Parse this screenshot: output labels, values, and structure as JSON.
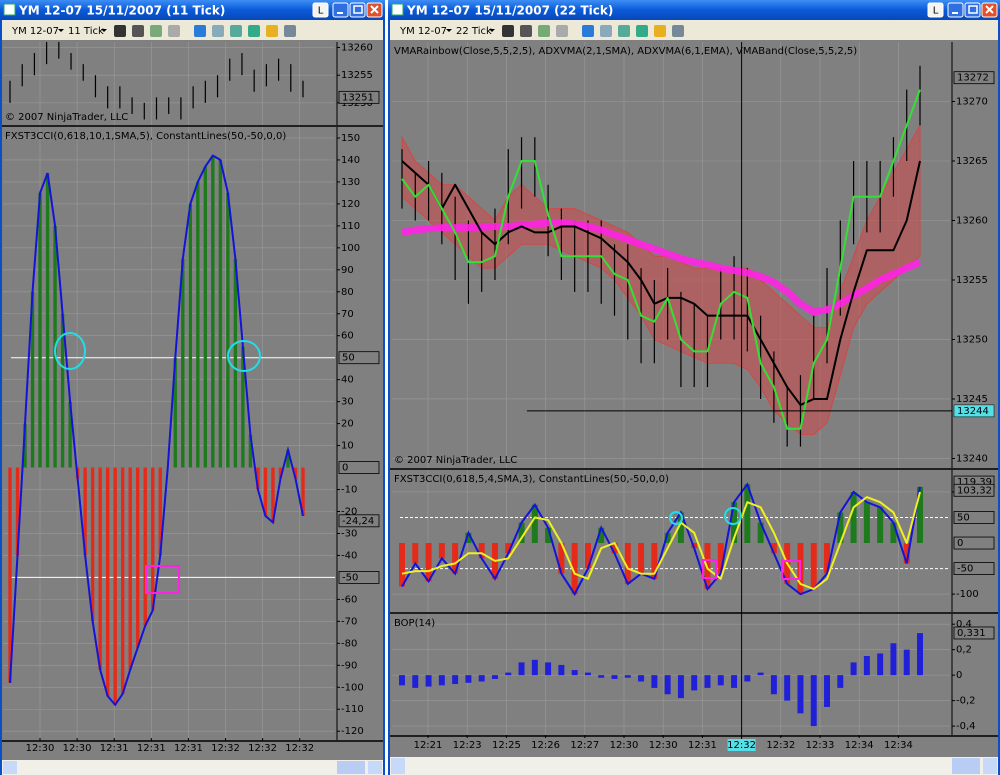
{
  "windows": [
    {
      "title": "YM 12-07  15/11/2007  (11 Tick)",
      "link_button": "L",
      "instrument": "YM 12-07",
      "interval": "11 Tick",
      "xaxis": {
        "labels": [
          "12:30",
          "12:30",
          "12:31",
          "12:31",
          "12:31",
          "12:32",
          "12:32",
          "12:32"
        ]
      },
      "panels": [
        {
          "copyright": "© 2007 NinjaTrader, LLC",
          "ylim": [
            13246,
            13261
          ],
          "yticks": [
            13250,
            13255,
            13260
          ],
          "markers": [
            13251
          ],
          "series": [
            {
              "type": "ohlc",
              "color": "#000000",
              "high": [
                13254,
                13257,
                13259,
                13261,
                13261,
                13259,
                13257,
                13255,
                13253,
                13253,
                13251,
                13250,
                13251,
                13251,
                13251,
                13253,
                13254,
                13255,
                13258,
                13259,
                13256,
                13257,
                13258,
                13257,
                13254
              ],
              "low": [
                13250,
                13253,
                13255,
                13257,
                13258,
                13256,
                13254,
                13251,
                13249,
                13249,
                13248,
                13247,
                13247,
                13248,
                13247,
                13249,
                13250,
                13251,
                13254,
                13255,
                13252,
                13253,
                13254,
                13252,
                13251
              ]
            }
          ]
        },
        {
          "label": "FXST3CCI(0,618,10,1,SMA,5), ConstantLines(50,-50,0,0)",
          "ylim": [
            -124,
            155
          ],
          "yticks": [
            -120,
            -110,
            -100,
            -90,
            -80,
            -70,
            -60,
            -40,
            -30,
            -20,
            -10,
            10,
            20,
            30,
            40,
            60,
            70,
            80,
            90,
            100,
            110,
            120,
            130,
            140,
            150
          ],
          "levels": [
            50,
            -50
          ],
          "level_style": "solid",
          "markers": [
            50,
            0,
            {
              "value": -24.24,
              "label": "-24,24"
            },
            -50
          ],
          "series": [
            {
              "type": "histogram",
              "up_color": "#1d7a1d",
              "down_color": "#e52a1a",
              "line_color": "#1414d8",
              "values": [
                -98,
                -40,
                20,
                80,
                125,
                134,
                110,
                70,
                30,
                -5,
                -40,
                -70,
                -92,
                -104,
                -108,
                -103,
                -92,
                -82,
                -72,
                -65,
                -40,
                0,
                50,
                95,
                120,
                130,
                137,
                142,
                140,
                125,
                95,
                55,
                15,
                -10,
                -22,
                -25,
                -5,
                8,
                -5,
                -22
              ]
            }
          ]
        }
      ]
    },
    {
      "title": "YM 12-07  15/11/2007  (22 Tick)",
      "link_button": "L",
      "instrument": "YM 12-07",
      "interval": "22 Tick",
      "xaxis": {
        "labels": [
          "12:21",
          "12:23",
          "12:25",
          "12:26",
          "12:27",
          "12:30",
          "12:30",
          "12:31",
          "12:32",
          "12:32",
          "12:33",
          "12:34",
          "12:34"
        ],
        "crosshair_index": 8
      },
      "panels": [
        {
          "label": "VMARainbow(Close,5,5,2,5), ADXVMA(2,1,SMA), ADXVMA(6,1,EMA), VMABand(Close,5,5,2,5)",
          "copyright": "© 2007 NinjaTrader, LLC",
          "ylim": [
            13239.2,
            13275
          ],
          "yticks": [
            13240,
            13245,
            13250,
            13255,
            13260,
            13265,
            13270
          ],
          "markers": [
            13272
          ],
          "crosshair": {
            "value": 13244,
            "label": "13244"
          },
          "series": [
            {
              "type": "band",
              "color": "#d04848",
              "upper": [
                13267,
                13265,
                13264,
                13263,
                13263,
                13262,
                13261,
                13260,
                13262,
                13263,
                13262,
                13261,
                13261,
                13261,
                13260.5,
                13260,
                13259.5,
                13259,
                13258,
                13257,
                13257,
                13256.5,
                13256,
                13256,
                13256,
                13256,
                13256,
                13255,
                13254,
                13253,
                13252,
                13251,
                13251,
                13254,
                13257,
                13260,
                13262,
                13264,
                13266,
                13268
              ],
              "lower": [
                13262,
                13261,
                13260,
                13259,
                13258,
                13257,
                13256,
                13256,
                13257,
                13258,
                13258,
                13258,
                13257.5,
                13257,
                13256.5,
                13256,
                13255,
                13253.5,
                13252,
                13250,
                13249.5,
                13249,
                13248.5,
                13248,
                13248,
                13248,
                13247.5,
                13246,
                13244,
                13243,
                13242,
                13242,
                13243,
                13247,
                13251,
                13253,
                13254,
                13255,
                13256,
                13257
              ]
            },
            {
              "type": "ohlc",
              "color": "#000000",
              "high": [
                13266,
                13264,
                13265,
                13264,
                13262,
                13260,
                13259,
                13261,
                13266,
                13267,
                13267,
                13263,
                13261,
                13260,
                13260,
                13260,
                13258,
                13258,
                13256,
                13255,
                13256,
                13254,
                13253,
                13252,
                13256,
                13257,
                13256,
                13252,
                13249,
                13246,
                13247,
                13252,
                13256,
                13260,
                13265,
                13265,
                13265,
                13267,
                13271,
                13273
              ],
              "low": [
                13261,
                13260,
                13260,
                13258,
                13255,
                13253,
                13254,
                13255,
                13258,
                13261,
                13262,
                13257,
                13255,
                13254,
                13254,
                13253,
                13252,
                13250,
                13248,
                13248,
                13250,
                13246,
                13246,
                13246,
                13250,
                13250,
                13249,
                13245,
                13243,
                13241,
                13241,
                13245,
                13248,
                13252,
                13258,
                13259,
                13259,
                13262,
                13265,
                13268
              ]
            },
            {
              "type": "line",
              "color": "#ff22e6",
              "width": 7,
              "values": [
                13259,
                13259.2,
                13259.3,
                13259.4,
                13259.4,
                13259.4,
                13259.4,
                13259.5,
                13259.5,
                13259.6,
                13259.7,
                13259.8,
                13259.8,
                13259.7,
                13259.5,
                13259.2,
                13258.8,
                13258.4,
                13258,
                13257.6,
                13257.2,
                13256.8,
                13256.5,
                13256.3,
                13256,
                13255.8,
                13255.6,
                13255.3,
                13254.8,
                13254,
                13253,
                13252.3,
                13252.5,
                13253,
                13253.7,
                13254.3,
                13255,
                13255.5,
                13256,
                13256.5
              ]
            },
            {
              "type": "line",
              "color": "#000000",
              "width": 2,
              "values": [
                13265,
                13264,
                13263,
                13261,
                13263,
                13261,
                13259,
                13258,
                13259,
                13259.5,
                13259,
                13259,
                13259.5,
                13259.5,
                13259,
                13258.5,
                13257.5,
                13256.5,
                13255,
                13253,
                13253.5,
                13253.5,
                13253,
                13252,
                13252,
                13252,
                13252,
                13250,
                13248,
                13246,
                13244.5,
                13245,
                13245,
                13250,
                13254,
                13257.5,
                13257.5,
                13257.5,
                13260,
                13265
              ]
            },
            {
              "type": "line",
              "color": "#33e033",
              "width": 2,
              "values": [
                13263.5,
                13262,
                13263,
                13261,
                13259,
                13256.5,
                13256.5,
                13257,
                13262,
                13265,
                13265,
                13260.5,
                13257,
                13257,
                13257,
                13257,
                13255.5,
                13255,
                13252,
                13251.5,
                13253.5,
                13250,
                13249,
                13249,
                13253,
                13254,
                13253.5,
                13248,
                13246,
                13242.5,
                13242.5,
                13248,
                13250,
                13256,
                13262,
                13262,
                13262,
                13265,
                13268,
                13271
              ]
            }
          ]
        },
        {
          "label": "FXST3CCI(0,618,5,4,SMA,3), ConstantLines(50,-50,0,0)",
          "ylim": [
            -135,
            143
          ],
          "yticks": [
            -100,
            100
          ],
          "levels": [
            50,
            -50
          ],
          "level_style": "dashed",
          "markers": [
            {
              "value": 119.39,
              "label": "119,39"
            },
            {
              "value": 103.32,
              "label": "103,32"
            },
            50,
            0,
            -50
          ],
          "series": [
            {
              "type": "histogram",
              "up_color": "#1d7a1d",
              "down_color": "#e52a1a",
              "line_color": "#1414d8",
              "values": [
                -85,
                -40,
                -75,
                -30,
                -60,
                20,
                -30,
                -70,
                -20,
                40,
                75,
                30,
                -60,
                -100,
                -50,
                30,
                -20,
                -80,
                -60,
                -70,
                20,
                60,
                -10,
                -90,
                -60,
                80,
                115,
                40,
                -20,
                -80,
                -100,
                -90,
                -60,
                60,
                100,
                80,
                70,
                40,
                -40,
                110
              ]
            },
            {
              "type": "line",
              "color": "#f0f020",
              "width": 2,
              "values": [
                -60,
                -55,
                -55,
                -45,
                -40,
                -20,
                -20,
                -35,
                -30,
                10,
                50,
                45,
                0,
                -60,
                -70,
                -10,
                0,
                -50,
                -60,
                -60,
                -10,
                40,
                20,
                -50,
                -70,
                10,
                80,
                70,
                20,
                -40,
                -80,
                -90,
                -70,
                0,
                70,
                90,
                80,
                60,
                0,
                100
              ]
            }
          ]
        },
        {
          "label": "BOP(14)",
          "ylim": [
            -0.47,
            0.48
          ],
          "yticks": [
            {
              "value": 0.4,
              "label": "0,4"
            },
            {
              "value": 0.2,
              "label": "0,2"
            },
            0,
            {
              "value": -0.2,
              "label": "-0,2"
            },
            {
              "value": -0.4,
              "label": "-0,4"
            }
          ],
          "markers": [
            {
              "value": 0.331,
              "label": "0,331"
            }
          ],
          "series": [
            {
              "type": "histogram",
              "up_color": "#2020d8",
              "down_color": "#2020d8",
              "values": [
                -0.08,
                -0.1,
                -0.09,
                -0.08,
                -0.07,
                -0.06,
                -0.05,
                -0.03,
                0.02,
                0.1,
                0.12,
                0.1,
                0.08,
                0.04,
                0.02,
                -0.02,
                -0.03,
                -0.02,
                -0.05,
                -0.1,
                -0.15,
                -0.18,
                -0.12,
                -0.1,
                -0.08,
                -0.1,
                -0.05,
                0.02,
                -0.15,
                -0.2,
                -0.3,
                -0.4,
                -0.25,
                -0.1,
                0.1,
                0.15,
                0.17,
                0.25,
                0.2,
                0.33
              ]
            }
          ]
        }
      ]
    }
  ]
}
